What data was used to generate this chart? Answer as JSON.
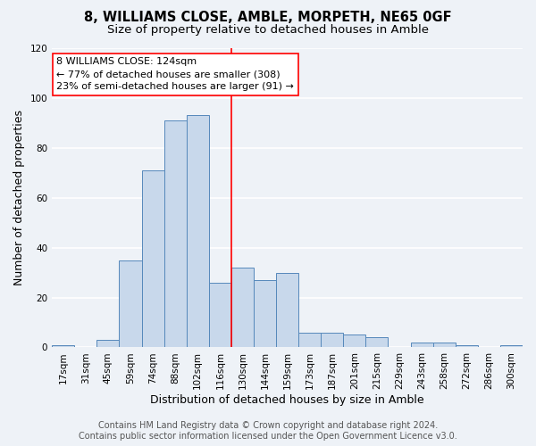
{
  "title": "8, WILLIAMS CLOSE, AMBLE, MORPETH, NE65 0GF",
  "subtitle": "Size of property relative to detached houses in Amble",
  "xlabel": "Distribution of detached houses by size in Amble",
  "ylabel": "Number of detached properties",
  "bar_labels": [
    "17sqm",
    "31sqm",
    "45sqm",
    "59sqm",
    "74sqm",
    "88sqm",
    "102sqm",
    "116sqm",
    "130sqm",
    "144sqm",
    "159sqm",
    "173sqm",
    "187sqm",
    "201sqm",
    "215sqm",
    "229sqm",
    "243sqm",
    "258sqm",
    "272sqm",
    "286sqm",
    "300sqm"
  ],
  "bar_values": [
    1,
    0,
    3,
    35,
    71,
    91,
    93,
    26,
    32,
    27,
    30,
    6,
    6,
    5,
    4,
    0,
    2,
    2,
    1,
    0,
    1
  ],
  "bar_color": "#c8d8eb",
  "bar_edge_color": "#5588bb",
  "reference_line_x": 7.5,
  "ylim": [
    0,
    120
  ],
  "yticks": [
    0,
    20,
    40,
    60,
    80,
    100,
    120
  ],
  "annotation_title": "8 WILLIAMS CLOSE: 124sqm",
  "annotation_line1": "← 77% of detached houses are smaller (308)",
  "annotation_line2": "23% of semi-detached houses are larger (91) →",
  "footer1": "Contains HM Land Registry data © Crown copyright and database right 2024.",
  "footer2": "Contains public sector information licensed under the Open Government Licence v3.0.",
  "background_color": "#eef2f7",
  "plot_background": "#eef2f7",
  "grid_color": "#ffffff",
  "title_fontsize": 10.5,
  "subtitle_fontsize": 9.5,
  "axis_label_fontsize": 9,
  "tick_fontsize": 7.5,
  "footer_fontsize": 7
}
